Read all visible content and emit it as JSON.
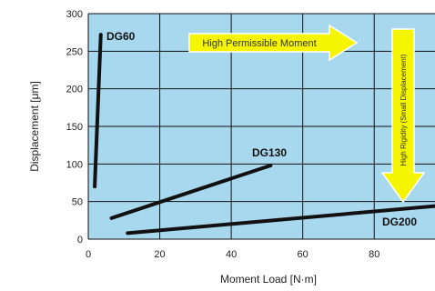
{
  "chart_data": {
    "type": "line",
    "xlabel": "Moment Load [N·m]",
    "ylabel": "Displacement [μm]",
    "xlim": [
      0,
      97
    ],
    "ylim": [
      0,
      300
    ],
    "xticks": [
      0,
      20,
      40,
      60,
      80
    ],
    "yticks": [
      0,
      50,
      100,
      150,
      200,
      250,
      300
    ],
    "grid": true,
    "plot_background": "#a8d8ee",
    "series": [
      {
        "name": "DG60",
        "x": [
          1.8,
          3.5
        ],
        "y": [
          70,
          272
        ]
      },
      {
        "name": "DG130",
        "x": [
          6.5,
          51
        ],
        "y": [
          28,
          98
        ]
      },
      {
        "name": "DG200",
        "x": [
          11,
          97
        ],
        "y": [
          8,
          44
        ]
      }
    ],
    "annotations": [
      {
        "text": "High Permissible Moment",
        "direction": "right",
        "color": "#f5f500"
      },
      {
        "text": "High Rigidity (Small Displacement)",
        "direction": "down",
        "color": "#f5f500"
      }
    ]
  }
}
